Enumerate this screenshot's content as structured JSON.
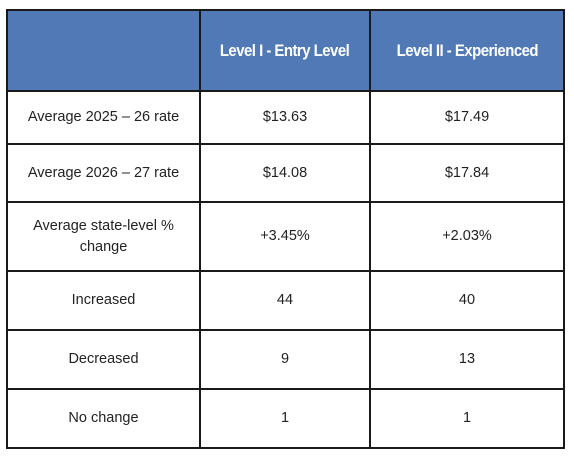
{
  "table": {
    "header": [
      "Level I - Entry Level",
      "Level II - Experienced"
    ],
    "rows": [
      [
        "Average 2025 – 26 rate",
        "$13.63",
        "$17.49"
      ],
      [
        "Average 2026 – 27 rate",
        "$14.08",
        "$17.84"
      ],
      [
        "Average state-level % change",
        "+3.45%",
        "+2.03%"
      ],
      [
        "Increased",
        "44",
        "40"
      ],
      [
        "Decreased",
        "9",
        "13"
      ],
      [
        "No change",
        "1",
        "1"
      ]
    ]
  }
}
